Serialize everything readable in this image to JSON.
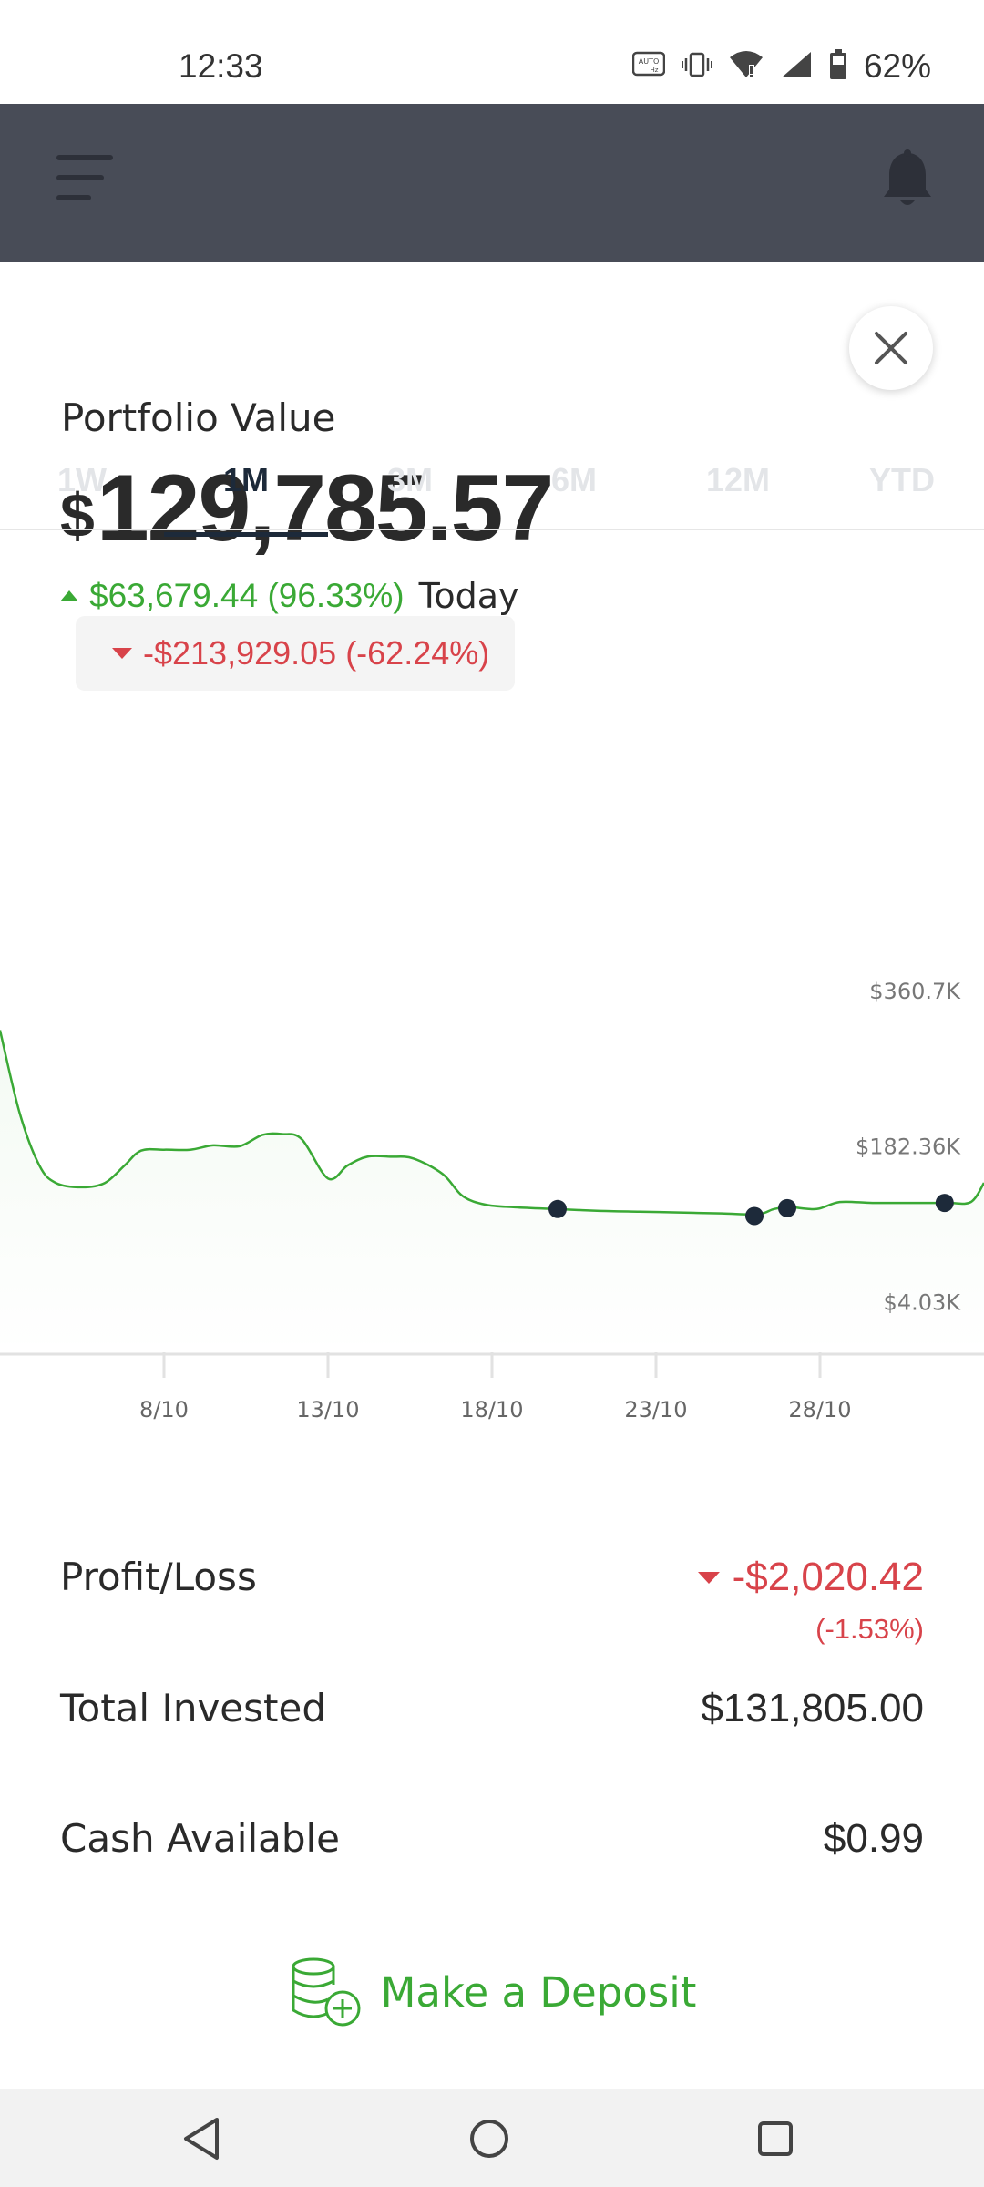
{
  "status_bar": {
    "time": "12:33",
    "battery": "62%",
    "icons": [
      "auto-hz-icon",
      "vibrate-icon",
      "wifi-icon",
      "signal-icon",
      "battery-icon"
    ]
  },
  "header": {
    "menu_icon": "menu-icon",
    "bell_icon": "bell-icon"
  },
  "portfolio": {
    "label": "Portfolio Value",
    "currency": "$",
    "value": "129,785.57",
    "change": "$63,679.44 (96.33%)",
    "change_period": "Today"
  },
  "tabs": [
    {
      "label": "1W",
      "active": false
    },
    {
      "label": "1M",
      "active": true
    },
    {
      "label": "3M",
      "active": false
    },
    {
      "label": "6M",
      "active": false
    },
    {
      "label": "12M",
      "active": false
    },
    {
      "label": "YTD",
      "active": false
    }
  ],
  "chart_change": "-$213,929.05 (-62.24%)",
  "chart_data": {
    "type": "line",
    "title": "",
    "xlabel": "",
    "ylabel": "",
    "y_tick_labels": [
      "$360.7K",
      "$182.36K",
      "$4.03K"
    ],
    "y_ticks": [
      360700,
      182360,
      4030
    ],
    "ylim": [
      -50000,
      420000
    ],
    "x_tick_labels": [
      "8/10",
      "13/10",
      "18/10",
      "23/10",
      "28/10"
    ],
    "x_ticks": [
      8,
      13,
      18,
      23,
      28
    ],
    "xlim": [
      3,
      33
    ],
    "grid": false,
    "series": [
      {
        "x": [
          3,
          3.6,
          4.2,
          4.7,
          5.5,
          6.2,
          6.8,
          7.3,
          8,
          8.8,
          9.5,
          10.3,
          11,
          11.6,
          12.2,
          13,
          13.6,
          14.2,
          14.9,
          15.6,
          16.5,
          17.1,
          17.8,
          18.7,
          19.9,
          21.2,
          22.5,
          23.7,
          25,
          26.1,
          26.6,
          27.1,
          27.9,
          28.6,
          29.6,
          30.8,
          31.9,
          32.6,
          33
        ],
        "values": [
          315000,
          220000,
          160000,
          140000,
          135000,
          140000,
          160000,
          177000,
          178000,
          178000,
          183000,
          182000,
          195000,
          196000,
          190000,
          145000,
          160000,
          170000,
          170000,
          168000,
          150000,
          125000,
          115000,
          112000,
          110000,
          108000,
          107000,
          106000,
          105000,
          104000,
          110000,
          112000,
          110000,
          118000,
          117000,
          117000,
          117000,
          118000,
          140000
        ]
      }
    ],
    "markers": [
      {
        "x": 20,
        "y": 110000
      },
      {
        "x": 26,
        "y": 102000
      },
      {
        "x": 27,
        "y": 111000
      },
      {
        "x": 31.8,
        "y": 117000
      }
    ]
  },
  "stats": {
    "profit_loss": {
      "label": "Profit/Loss",
      "value": "-$2,020.42",
      "pct": "(-1.53%)"
    },
    "total_invested": {
      "label": "Total Invested",
      "value": "$131,805.00"
    },
    "cash_available": {
      "label": "Cash Available",
      "value": "$0.99"
    }
  },
  "deposit": {
    "label": "Make a Deposit",
    "icon": "coins-add-icon"
  },
  "nav": {
    "back": "back-icon",
    "home": "home-icon",
    "recents": "recents-icon"
  },
  "colors": {
    "green": "#3aa935",
    "red": "#d8434a",
    "header": "#484c57",
    "navy": "#1d2a3a"
  }
}
